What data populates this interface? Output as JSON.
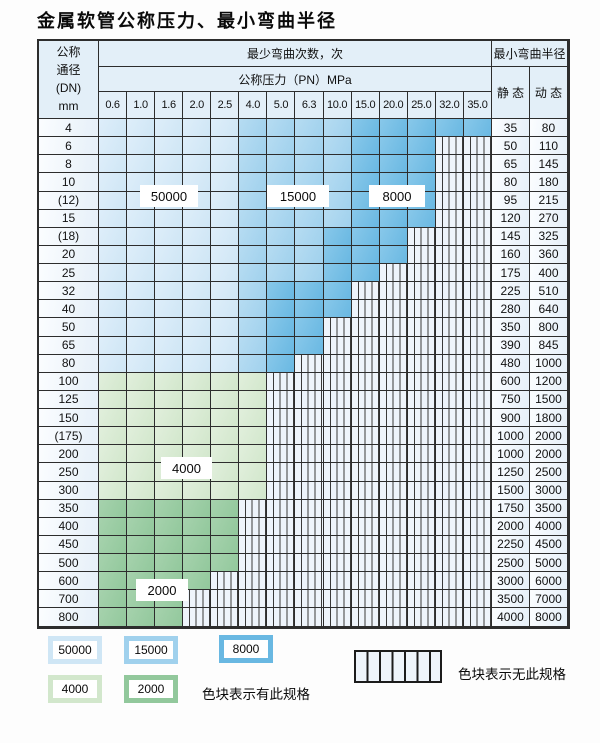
{
  "title": "金属软管公称压力、最小弯曲半径",
  "table": {
    "dn_header_lines": [
      "公称",
      "通径",
      "(DN)",
      "mm"
    ],
    "bend_times_header": "最少弯曲次数，次",
    "pressure_header": "公称压力（PN）MPa",
    "radius_header": "最小弯曲半径",
    "static_header": "静 态",
    "dynamic_header": "动 态",
    "pn_columns": [
      "0.6",
      "1.0",
      "1.6",
      "2.0",
      "2.5",
      "4.0",
      "5.0",
      "6.3",
      "10.0",
      "15.0",
      "20.0",
      "25.0",
      "32.0",
      "35.0"
    ],
    "rows": [
      {
        "dn": "4",
        "zones": [
          [
            "b1",
            5
          ],
          [
            "b2",
            4
          ],
          [
            "b3",
            5
          ]
        ],
        "static": "35",
        "dynamic": "80"
      },
      {
        "dn": "6",
        "zones": [
          [
            "b1",
            5
          ],
          [
            "b2",
            4
          ],
          [
            "b3",
            3
          ]
        ],
        "static": "50",
        "dynamic": "110"
      },
      {
        "dn": "8",
        "zones": [
          [
            "b1",
            5
          ],
          [
            "b2",
            4
          ],
          [
            "b3",
            3
          ]
        ],
        "static": "65",
        "dynamic": "145"
      },
      {
        "dn": "10",
        "zones": [
          [
            "b1",
            5
          ],
          [
            "b2",
            4
          ],
          [
            "b3",
            3
          ]
        ],
        "static": "80",
        "dynamic": "180"
      },
      {
        "dn": "(12)",
        "zones": [
          [
            "b1",
            5
          ],
          [
            "b2",
            4
          ],
          [
            "b3",
            3
          ]
        ],
        "static": "95",
        "dynamic": "215"
      },
      {
        "dn": "15",
        "zones": [
          [
            "b1",
            5
          ],
          [
            "b2",
            4
          ],
          [
            "b3",
            3
          ]
        ],
        "static": "120",
        "dynamic": "270"
      },
      {
        "dn": "(18)",
        "zones": [
          [
            "b1",
            5
          ],
          [
            "b2",
            3
          ],
          [
            "b3",
            3
          ]
        ],
        "static": "145",
        "dynamic": "325"
      },
      {
        "dn": "20",
        "zones": [
          [
            "b1",
            5
          ],
          [
            "b2",
            3
          ],
          [
            "b3",
            3
          ]
        ],
        "static": "160",
        "dynamic": "360"
      },
      {
        "dn": "25",
        "zones": [
          [
            "b1",
            5
          ],
          [
            "b2",
            3
          ],
          [
            "b3",
            2
          ]
        ],
        "static": "175",
        "dynamic": "400"
      },
      {
        "dn": "32",
        "zones": [
          [
            "b1",
            5
          ],
          [
            "b2",
            1
          ],
          [
            "b3",
            3
          ]
        ],
        "static": "225",
        "dynamic": "510"
      },
      {
        "dn": "40",
        "zones": [
          [
            "b1",
            5
          ],
          [
            "b2",
            1
          ],
          [
            "b3",
            3
          ]
        ],
        "static": "280",
        "dynamic": "640"
      },
      {
        "dn": "50",
        "zones": [
          [
            "b1",
            5
          ],
          [
            "b2",
            1
          ],
          [
            "b3",
            2
          ]
        ],
        "static": "350",
        "dynamic": "800"
      },
      {
        "dn": "65",
        "zones": [
          [
            "b1",
            5
          ],
          [
            "b2",
            1
          ],
          [
            "b3",
            2
          ]
        ],
        "static": "390",
        "dynamic": "845"
      },
      {
        "dn": "80",
        "zones": [
          [
            "b1",
            5
          ],
          [
            "b2",
            1
          ],
          [
            "b3",
            1
          ]
        ],
        "static": "480",
        "dynamic": "1000"
      },
      {
        "dn": "100",
        "zones": [
          [
            "g1",
            6
          ]
        ],
        "static": "600",
        "dynamic": "1200"
      },
      {
        "dn": "125",
        "zones": [
          [
            "g1",
            6
          ]
        ],
        "static": "750",
        "dynamic": "1500"
      },
      {
        "dn": "150",
        "zones": [
          [
            "g1",
            6
          ]
        ],
        "static": "900",
        "dynamic": "1800"
      },
      {
        "dn": "(175)",
        "zones": [
          [
            "g1",
            6
          ]
        ],
        "static": "1000",
        "dynamic": "2000"
      },
      {
        "dn": "200",
        "zones": [
          [
            "g1",
            6
          ]
        ],
        "static": "1000",
        "dynamic": "2000"
      },
      {
        "dn": "250",
        "zones": [
          [
            "g1",
            6
          ]
        ],
        "static": "1250",
        "dynamic": "2500"
      },
      {
        "dn": "300",
        "zones": [
          [
            "g1",
            6
          ]
        ],
        "static": "1500",
        "dynamic": "3000"
      },
      {
        "dn": "350",
        "zones": [
          [
            "g2",
            5
          ]
        ],
        "static": "1750",
        "dynamic": "3500"
      },
      {
        "dn": "400",
        "zones": [
          [
            "g2",
            5
          ]
        ],
        "static": "2000",
        "dynamic": "4000"
      },
      {
        "dn": "450",
        "zones": [
          [
            "g2",
            5
          ]
        ],
        "static": "2250",
        "dynamic": "4500"
      },
      {
        "dn": "500",
        "zones": [
          [
            "g2",
            5
          ]
        ],
        "static": "2500",
        "dynamic": "5000"
      },
      {
        "dn": "600",
        "zones": [
          [
            "g2",
            4
          ]
        ],
        "static": "3000",
        "dynamic": "6000"
      },
      {
        "dn": "700",
        "zones": [
          [
            "g2",
            3
          ]
        ],
        "static": "3500",
        "dynamic": "7000"
      },
      {
        "dn": "800",
        "zones": [
          [
            "g2",
            3
          ]
        ],
        "static": "4000",
        "dynamic": "8000"
      }
    ]
  },
  "zone_labels": [
    {
      "text": "50000"
    },
    {
      "text": "15000"
    },
    {
      "text": "8000"
    },
    {
      "text": "4000"
    },
    {
      "text": "2000"
    }
  ],
  "legend": {
    "items": [
      {
        "label": "50000",
        "zone": "b1"
      },
      {
        "label": "15000",
        "zone": "b2"
      },
      {
        "label": "8000",
        "zone": "b3"
      },
      {
        "label": "4000",
        "zone": "g1"
      },
      {
        "label": "2000",
        "zone": "g2"
      }
    ],
    "has_spec_text": "色块表示有此规格",
    "no_spec_text": "色块表示无此规格"
  },
  "colors": {
    "blue_50000": "#cfe6f5",
    "blue_50000_hi": "#deeefa",
    "blue_15000": "#a0d1ed",
    "blue_15000_hi": "#b6dcf2",
    "blue_8000": "#69b8e2",
    "blue_8000_hi": "#88c8ea",
    "green_4000": "#d2e7cc",
    "green_4000_hi": "#e1efdc",
    "green_2000": "#92c89c",
    "green_2000_hi": "#a6d2ad",
    "hatch_bg": "#eef4fb",
    "hatch_line": "#3a3a3a",
    "header_bg": "#e3eff8",
    "side_bg": "#e8f1f9",
    "grid_line": "#2d2d2d",
    "ink": "#111111",
    "page_bg": "#fdfdfd"
  }
}
